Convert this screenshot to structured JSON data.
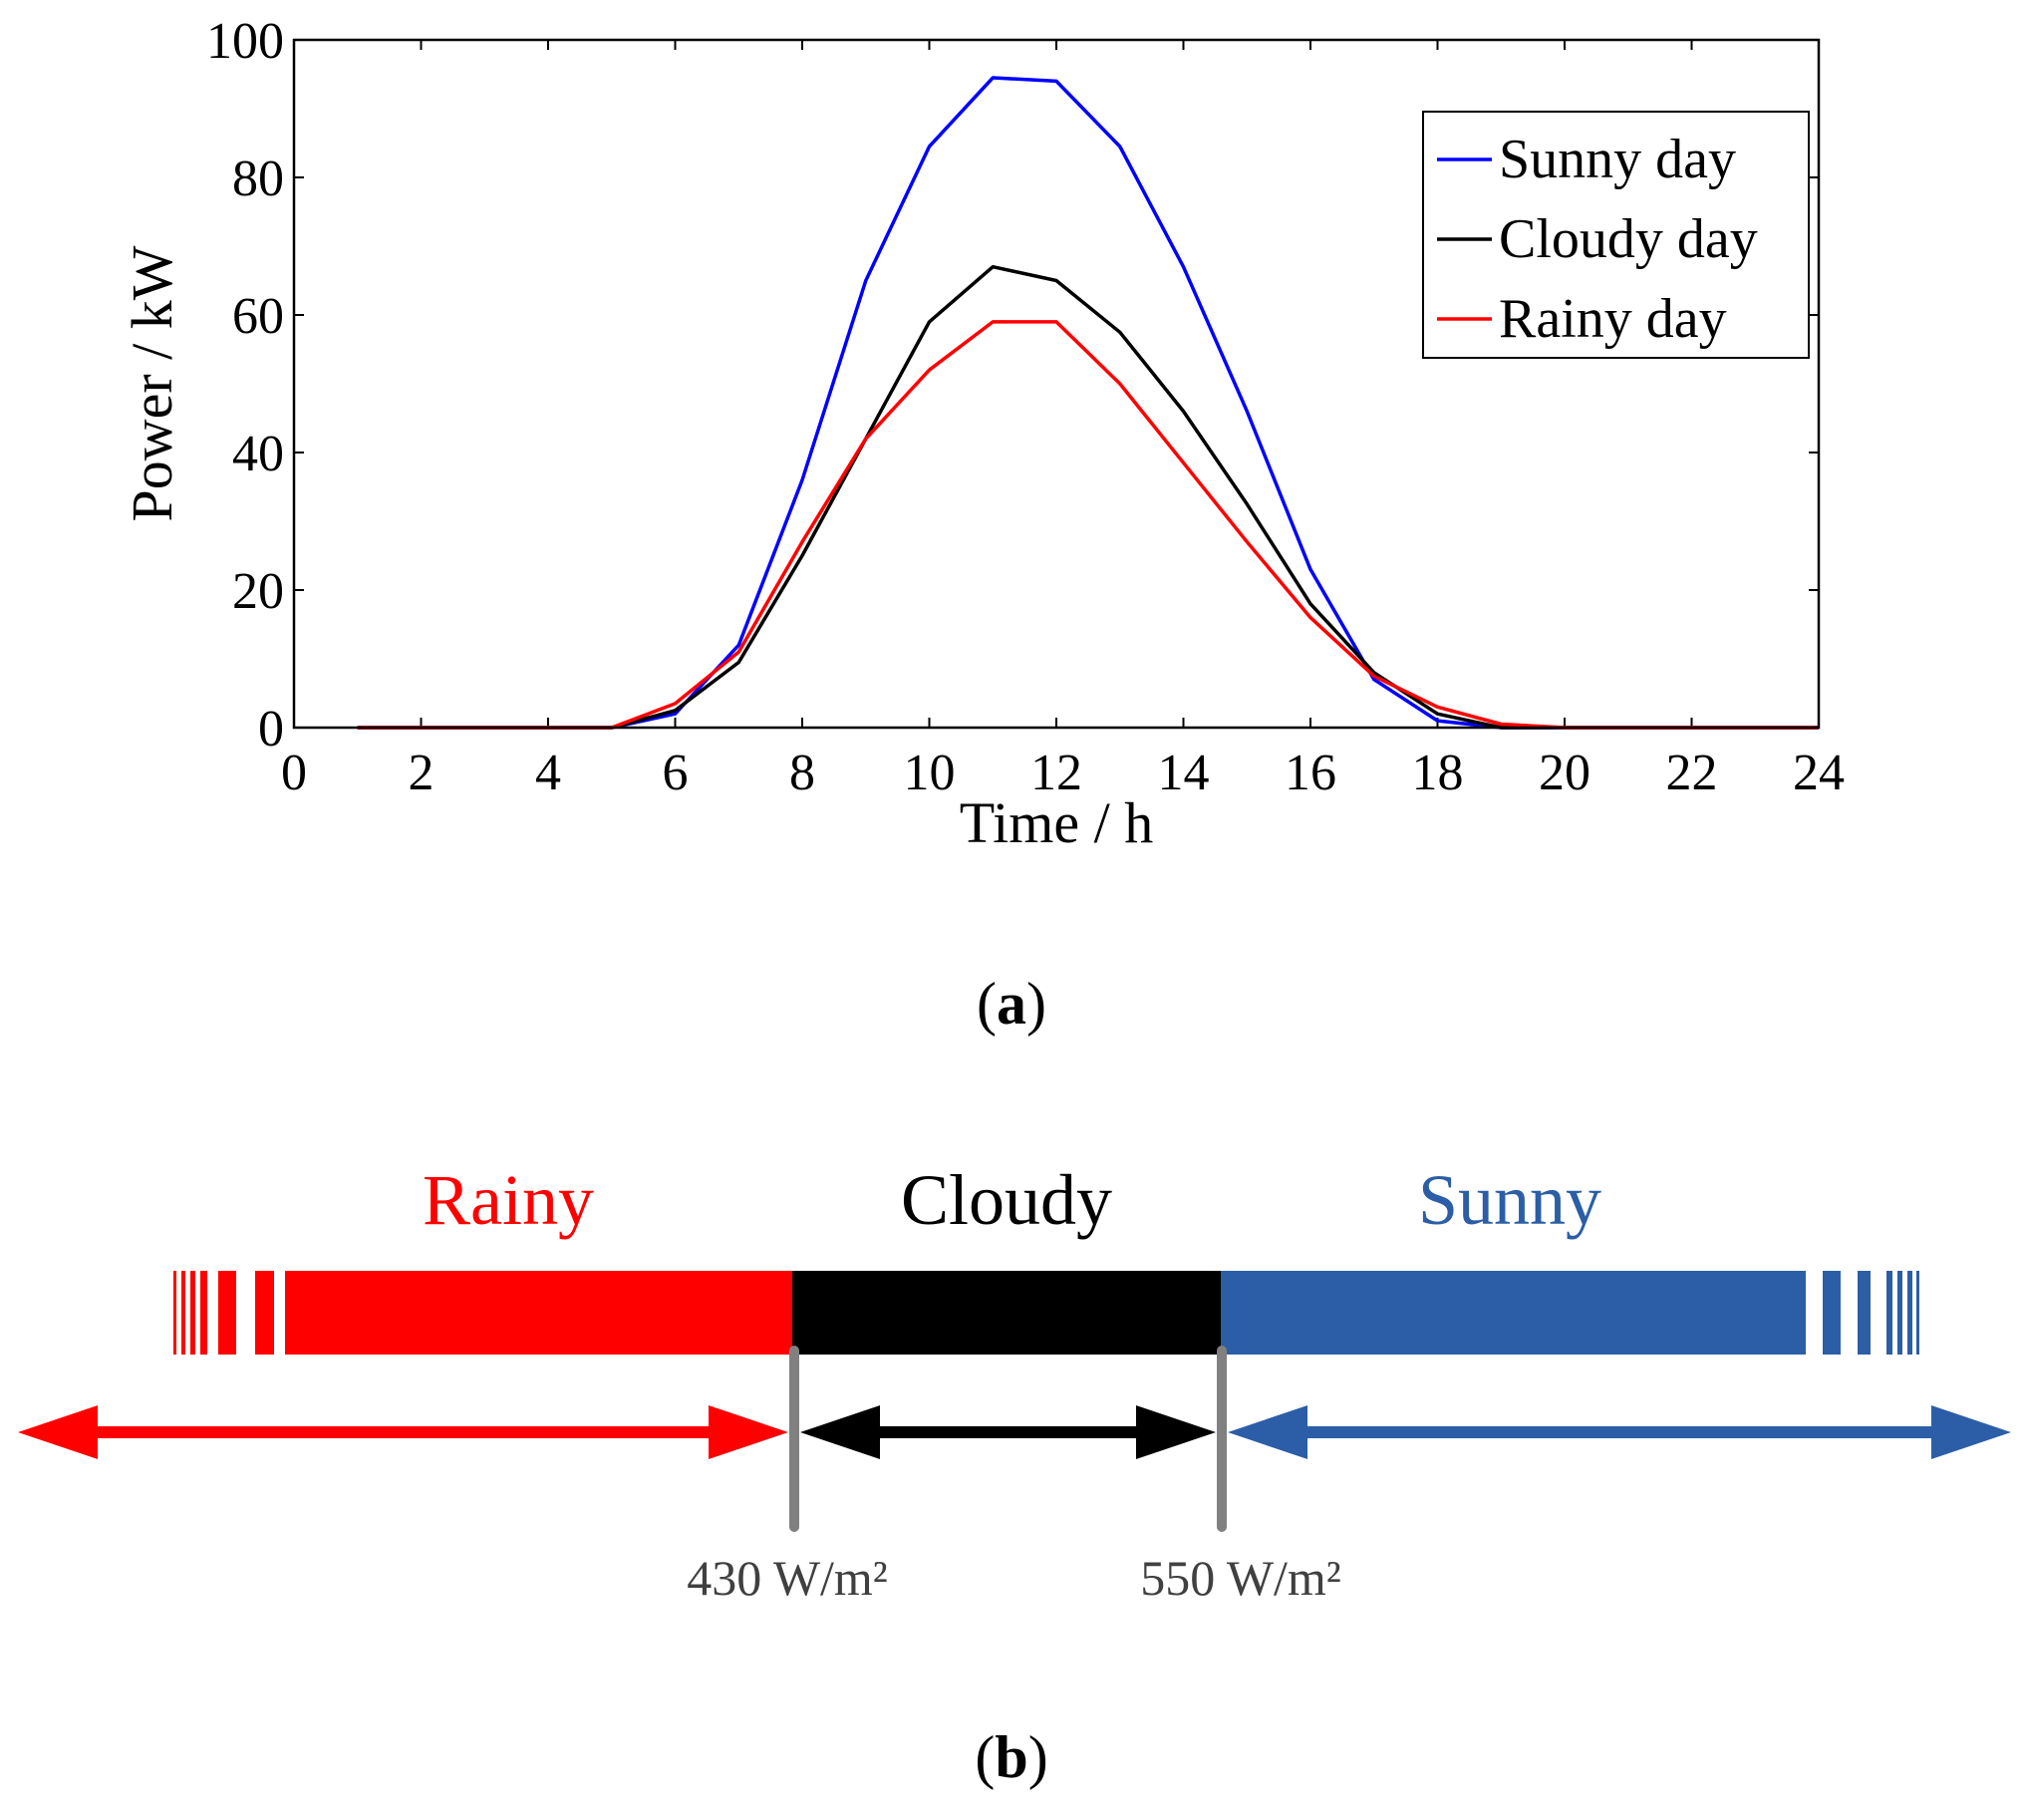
{
  "chart_data": [
    {
      "type": "line",
      "panel_label": "a",
      "xlabel": "Time / h",
      "ylabel": "Power / kW",
      "xlim": [
        0,
        24
      ],
      "ylim": [
        0,
        100
      ],
      "xticks": [
        0,
        2,
        4,
        6,
        8,
        10,
        12,
        14,
        16,
        18,
        20,
        22,
        24
      ],
      "yticks": [
        0,
        20,
        40,
        60,
        80,
        100
      ],
      "legend_position": "top-right",
      "x": [
        1,
        2,
        3,
        4,
        5,
        6,
        7,
        8,
        9,
        10,
        11,
        12,
        13,
        14,
        15,
        16,
        17,
        18,
        19,
        20,
        21,
        22,
        23,
        24
      ],
      "series": [
        {
          "name": "Sunny day",
          "color": "#0000ff",
          "values": [
            0,
            0,
            0,
            0,
            0,
            2,
            12,
            36,
            65,
            84.5,
            94.5,
            94,
            84.5,
            67,
            46,
            23,
            7,
            1,
            0,
            0,
            0,
            0,
            0,
            0
          ]
        },
        {
          "name": "Cloudy day",
          "color": "#000000",
          "values": [
            0,
            0,
            0,
            0,
            0,
            2.5,
            9.5,
            25,
            42,
            59,
            67,
            65,
            57.5,
            46,
            32.5,
            18,
            8,
            2,
            0,
            0,
            0,
            0,
            0,
            0
          ]
        },
        {
          "name": "Rainy day",
          "color": "#ff0000",
          "values": [
            0,
            0,
            0,
            0,
            0,
            3.5,
            11,
            27,
            42,
            52,
            59,
            59,
            50,
            38.5,
            27,
            16,
            7.5,
            3,
            0.5,
            0,
            0,
            0,
            0,
            0
          ]
        }
      ]
    },
    {
      "type": "diagram",
      "panel_label": "b",
      "categories": [
        {
          "name": "Rainy",
          "color": "#ff0000"
        },
        {
          "name": "Cloudy",
          "color": "#000000"
        },
        {
          "name": "Sunny",
          "color": "#2b5ea6"
        }
      ],
      "thresholds": [
        "430 W/m²",
        "550 W/m²"
      ],
      "threshold_color": "#808080"
    }
  ]
}
